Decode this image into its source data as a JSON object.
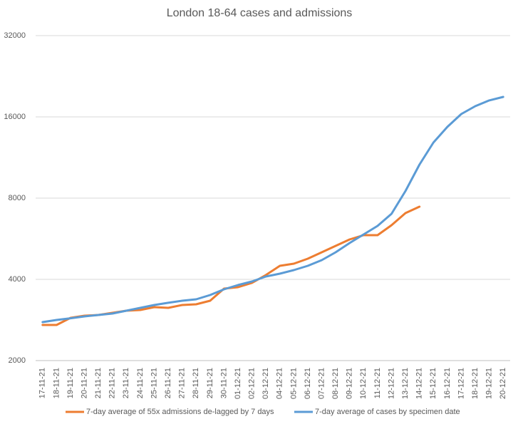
{
  "chart_data": {
    "type": "line",
    "title": "London 18-64 cases and admissions",
    "categories": [
      "17-11-21",
      "18-11-21",
      "19-11-21",
      "20-11-21",
      "21-11-21",
      "22-11-21",
      "23-11-21",
      "24-11-21",
      "25-11-21",
      "26-11-21",
      "27-11-21",
      "28-11-21",
      "29-11-21",
      "30-11-21",
      "01-12-21",
      "02-12-21",
      "03-12-21",
      "04-12-21",
      "05-12-21",
      "06-12-21",
      "07-12-21",
      "08-12-21",
      "09-12-21",
      "10-12-21",
      "11-12-21",
      "12-12-21",
      "13-12-21",
      "14-12-21",
      "15-12-21",
      "16-12-21",
      "17-12-21",
      "18-12-21",
      "19-12-21",
      "20-12-21"
    ],
    "series": [
      {
        "name": "7-day average of 55x admissions de-lagged by 7 days",
        "color": "#ed7d31",
        "values": [
          2710,
          2710,
          2880,
          2934,
          2951,
          3006,
          3061,
          3080,
          3156,
          3136,
          3213,
          3234,
          3334,
          3696,
          3742,
          3880,
          4150,
          4490,
          4572,
          4770,
          5040,
          5324,
          5622,
          5832,
          5832,
          6350,
          7042,
          7438,
          null,
          null,
          null,
          null,
          null,
          null
        ]
      },
      {
        "name": "7-day average of cases by specimen date",
        "color": "#5b9bd5",
        "values": [
          2778,
          2828,
          2870,
          2916,
          2951,
          2988,
          3061,
          3136,
          3213,
          3274,
          3334,
          3374,
          3500,
          3674,
          3810,
          3928,
          4098,
          4200,
          4330,
          4490,
          4714,
          5040,
          5454,
          5868,
          6312,
          6998,
          8504,
          10646,
          12854,
          14694,
          16394,
          17532,
          18408,
          18974
        ]
      }
    ],
    "yscale": "log",
    "ylim": [
      2000,
      32000
    ],
    "yticks": [
      2000,
      4000,
      8000,
      16000,
      32000
    ],
    "grid": true,
    "legend": "bottom"
  }
}
